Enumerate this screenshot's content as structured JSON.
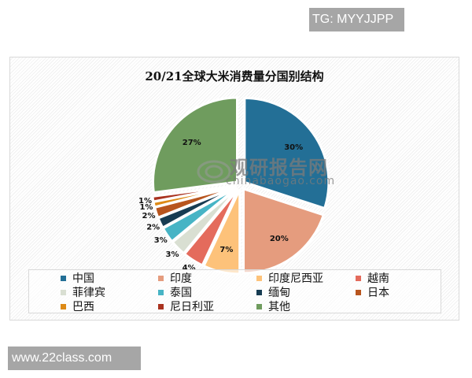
{
  "badge_top": "TG: MYYJJPP",
  "badge_bottom": "www.22class.com",
  "watermark": {
    "cn": "观研报告网",
    "en": "chinabaogao.com"
  },
  "chart_data": {
    "type": "pie",
    "title": "20/21全球大米消费量分国别结构",
    "categories": [
      "中国",
      "印度",
      "印度尼西亚",
      "越南",
      "菲律宾",
      "泰国",
      "缅甸",
      "日本",
      "巴西",
      "尼日利亚",
      "其他"
    ],
    "values": [
      30,
      20,
      7,
      4,
      3,
      3,
      2,
      2,
      1,
      1,
      27
    ],
    "labels": [
      "30%",
      "20%",
      "7%",
      "4%",
      "3%",
      "3%",
      "2%",
      "2%",
      "1%",
      "1%",
      "27%"
    ],
    "colors": [
      "#236f96",
      "#e59c7e",
      "#fdc27a",
      "#e46b5c",
      "#d9dfd2",
      "#47b4c5",
      "#173c52",
      "#b8551e",
      "#dd8a16",
      "#a9321f",
      "#6f9c5e"
    ],
    "legend_position": "bottom",
    "exploded": true
  },
  "legend": [
    {
      "label": "中国",
      "color": "#236f96"
    },
    {
      "label": "印度",
      "color": "#e59c7e"
    },
    {
      "label": "印度尼西亚",
      "color": "#fdc27a"
    },
    {
      "label": "越南",
      "color": "#e46b5c"
    },
    {
      "label": "菲律宾",
      "color": "#d9dfd2"
    },
    {
      "label": "泰国",
      "color": "#47b4c5"
    },
    {
      "label": "缅甸",
      "color": "#173c52"
    },
    {
      "label": "日本",
      "color": "#b8551e"
    },
    {
      "label": "巴西",
      "color": "#dd8a16"
    },
    {
      "label": "尼日利亚",
      "color": "#a9321f"
    },
    {
      "label": "其他",
      "color": "#6f9c5e"
    }
  ]
}
